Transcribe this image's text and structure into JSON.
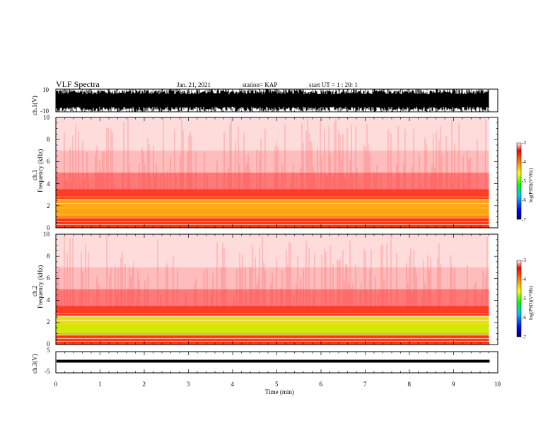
{
  "header": {
    "title": "VLF Spectra",
    "date": "Jan. 21, 2021",
    "station": "station= KAP",
    "start": "start  UT =   1 : 20: 1"
  },
  "chart_data": [
    {
      "id": "ch1_waveform",
      "type": "line",
      "ylabel": "ch.1(V)",
      "yticks": [
        "10",
        "-10"
      ],
      "ylim": [
        -10,
        10
      ],
      "xlim": [
        0,
        10
      ]
    },
    {
      "id": "ch1_spectrogram",
      "type": "heatmap",
      "ylabel_top": "ch.1",
      "ylabel": "Frequency  (kHz)",
      "yticks": [
        "0",
        "2",
        "4",
        "6",
        "8",
        "10"
      ],
      "ylim": [
        0,
        10
      ],
      "xlim": [
        0,
        9.8
      ],
      "colorbar": {
        "label": "log(PSD)(V²/Hz)",
        "ticks": [
          "-3",
          "-4",
          "-5",
          "-6",
          "-7"
        ],
        "range": [
          -7,
          -3
        ]
      }
    },
    {
      "id": "ch2_spectrogram",
      "type": "heatmap",
      "ylabel_top": "ch.2",
      "ylabel": "Frequency  (kHz)",
      "yticks": [
        "0",
        "2",
        "4",
        "6",
        "8",
        "10"
      ],
      "ylim": [
        0,
        10
      ],
      "xlim": [
        0,
        9.8
      ],
      "colorbar": {
        "label": "log(PSD)(V²/Hz)",
        "ticks": [
          "-3",
          "-4",
          "-5",
          "-6",
          "-7"
        ],
        "range": [
          -7,
          -3
        ]
      }
    },
    {
      "id": "ch3_waveform",
      "type": "line",
      "ylabel": "ch.3(V)",
      "yticks": [
        "5",
        "-5"
      ],
      "ylim": [
        -5,
        5
      ],
      "xlim": [
        0,
        10
      ],
      "xlabel": "Time  (min)",
      "xticks": [
        "0",
        "1",
        "2",
        "3",
        "4",
        "5",
        "6",
        "7",
        "8",
        "9",
        "10"
      ]
    }
  ]
}
